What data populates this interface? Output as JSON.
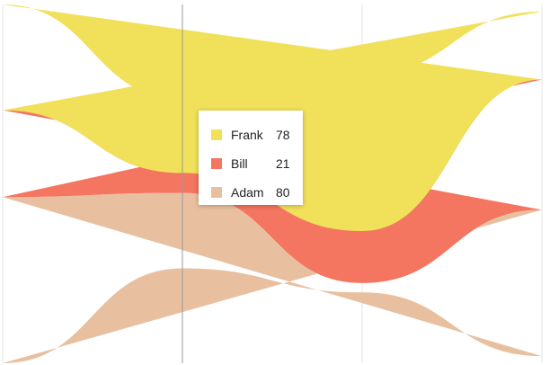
{
  "chart_data": {
    "type": "area",
    "stacking": "streamgraph",
    "x": [
      0,
      1,
      2,
      3
    ],
    "series": [
      {
        "name": "Adam",
        "color": "#e8c0a0",
        "values": [
          176,
          80,
          10,
          155
        ]
      },
      {
        "name": "Bill",
        "color": "#f47560",
        "values": [
          92,
          21,
          55,
          138
        ]
      },
      {
        "name": "Frank",
        "color": "#f1e05a",
        "values": [
          112,
          78,
          165,
          72
        ]
      }
    ],
    "crosshair_index": 1,
    "grid": "vertical"
  },
  "tooltip": {
    "items": [
      {
        "name": "Frank",
        "value": "78",
        "color": "#f1e05a"
      },
      {
        "name": "Bill",
        "value": "21",
        "color": "#f47560"
      },
      {
        "name": "Adam",
        "value": "80",
        "color": "#e8c0a0"
      }
    ]
  }
}
